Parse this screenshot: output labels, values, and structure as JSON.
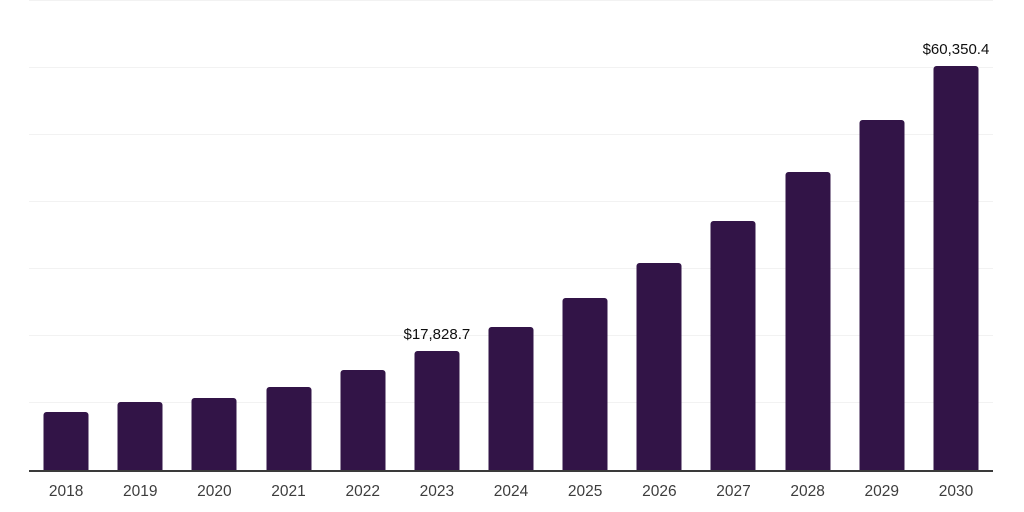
{
  "chart_data": {
    "type": "bar",
    "title": "",
    "xlabel": "",
    "ylabel": "",
    "categories": [
      "2018",
      "2019",
      "2020",
      "2021",
      "2022",
      "2023",
      "2024",
      "2025",
      "2026",
      "2027",
      "2028",
      "2029",
      "2030"
    ],
    "values": [
      8600,
      10200,
      10700,
      12400,
      14900,
      17828.7,
      21400,
      25600,
      30900,
      37200,
      44500,
      52200,
      60350.4
    ],
    "point_labels": {
      "2023": "$17,828.7",
      "2030": "$60,350.4"
    },
    "ylim": [
      0,
      70000
    ],
    "gridline_step": 10000,
    "grid": "horizontal-only",
    "legend": "none",
    "bar_color": "#321447",
    "axis_line_color": "#3a3a3a",
    "gridline_color": "#f2f2f2",
    "tick_label_color": "#3d3d3d",
    "data_label_color": "#0f0f0f",
    "background": "#ffffff"
  }
}
